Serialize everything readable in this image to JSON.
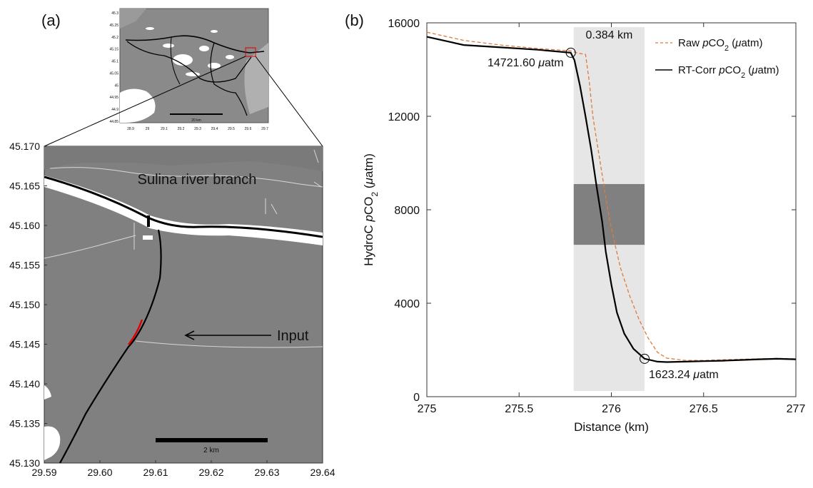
{
  "panel_a": {
    "label": "(a)",
    "inset": {
      "lat_ticks": [
        "45.3",
        "45.25",
        "45.2",
        "45.15",
        "45.1",
        "45.05",
        "45",
        "44.95",
        "44.9",
        "44.85"
      ],
      "lon_ticks": [
        "28.9",
        "29",
        "29.1",
        "29.2",
        "29.3",
        "29.4",
        "29.5",
        "29.6",
        "29.7"
      ],
      "scalebar_label": "20 km"
    },
    "map": {
      "lat_ticks": [
        "45.170",
        "45.165",
        "45.160",
        "45.155",
        "45.150",
        "45.145",
        "45.140",
        "45.135",
        "45.130"
      ],
      "lon_ticks": [
        "29.59",
        "29.60",
        "29.61",
        "29.62",
        "29.63",
        "29.64"
      ],
      "river_label": "Sulina river branch",
      "input_label": "Input",
      "scalebar_label": "2 km"
    },
    "colors": {
      "water": "#808080",
      "land": "#ffffff",
      "track": "#000000",
      "highlight": "#e00000"
    }
  },
  "chart_data": {
    "type": "line",
    "panel_label": "(b)",
    "xlabel": "Distance (km)",
    "ylabel_parts": [
      "HydroC ",
      "p",
      "CO",
      "2",
      " (",
      "μ",
      "atm)"
    ],
    "xlim": [
      275,
      277
    ],
    "ylim": [
      0,
      16000
    ],
    "x_ticks": [
      275,
      275.5,
      276,
      276.5,
      277
    ],
    "x_tick_labels": [
      "275",
      "275.5",
      "276",
      "276.5",
      "277"
    ],
    "y_ticks": [
      0,
      4000,
      8000,
      12000,
      16000
    ],
    "y_tick_labels": [
      "0",
      "4000",
      "8000",
      "12000",
      "16000"
    ],
    "grid": false,
    "legend_position": "top-right",
    "legend": [
      {
        "parts": [
          "Raw ",
          "p",
          "CO",
          "2",
          " (",
          "μ",
          "atm)"
        ],
        "style": "dashed",
        "color": "#e07a3a"
      },
      {
        "parts": [
          "RT-Corr ",
          "p",
          "CO",
          "2",
          " (",
          "μ",
          "atm)"
        ],
        "style": "solid",
        "color": "#000000"
      }
    ],
    "series": [
      {
        "name": "Raw pCO2 (μatm)",
        "style": "dashed",
        "color": "#e07a3a",
        "x": [
          275.0,
          275.2,
          275.4,
          275.6,
          275.78,
          275.82,
          275.86,
          275.88,
          275.9,
          275.93,
          275.96,
          275.99,
          276.02,
          276.05,
          276.1,
          276.15,
          276.2,
          276.25,
          276.3,
          276.4,
          276.5,
          276.6,
          276.7,
          276.8,
          276.9,
          277.0
        ],
        "y": [
          15600,
          15250,
          15050,
          14900,
          14800,
          14700,
          14650,
          13500,
          12000,
          10500,
          9000,
          7600,
          6500,
          5500,
          4300,
          3300,
          2500,
          1900,
          1650,
          1550,
          1550,
          1580,
          1600,
          1620,
          1640,
          1620
        ]
      },
      {
        "name": "RT-Corr pCO2 (μatm)",
        "style": "solid",
        "color": "#000000",
        "x": [
          275.0,
          275.2,
          275.4,
          275.6,
          275.7,
          275.78,
          275.8,
          275.83,
          275.86,
          275.89,
          275.92,
          275.95,
          275.97,
          276.0,
          276.03,
          276.07,
          276.12,
          276.18,
          276.25,
          276.3,
          276.4,
          276.5,
          276.6,
          276.7,
          276.8,
          276.9,
          277.0
        ],
        "y": [
          15400,
          15050,
          14950,
          14850,
          14780,
          14721.6,
          14400,
          13300,
          12000,
          10600,
          9000,
          7500,
          6200,
          4800,
          3600,
          2700,
          2050,
          1623.24,
          1500,
          1480,
          1500,
          1520,
          1540,
          1570,
          1600,
          1620,
          1600
        ]
      }
    ],
    "annotations": [
      {
        "x": 275.78,
        "y": 14721.6,
        "parts": [
          "14721.60 ",
          "μ",
          "atm"
        ]
      },
      {
        "x": 276.18,
        "y": 1623.24,
        "parts": [
          "1623.24 ",
          "μ",
          "atm"
        ]
      }
    ],
    "shaded_region": {
      "x_start": 275.796,
      "x_end": 276.18,
      "label": "0.384 km"
    },
    "dark_band": {
      "y_start": 6500,
      "y_end": 9100
    },
    "colors": {
      "light_band": "#e6e6e6",
      "dark_band": "#808080",
      "axis": "#333333"
    }
  }
}
